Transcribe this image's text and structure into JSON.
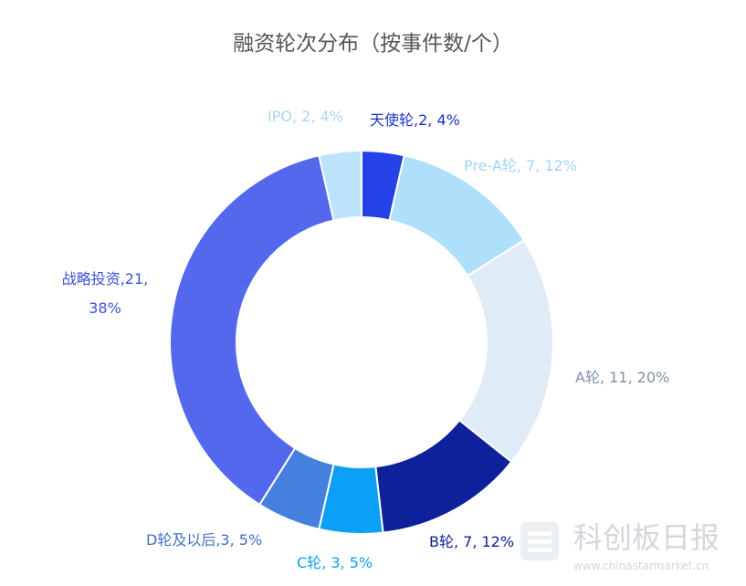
{
  "chart_data": {
    "type": "donut",
    "title": "融资轮次分布（按事件数/个）",
    "categories": [
      "天使轮",
      "Pre-A轮",
      "A轮",
      "B轮",
      "C轮",
      "D轮及以后",
      "战略投资",
      "IPO"
    ],
    "values": [
      2,
      7,
      11,
      7,
      3,
      3,
      21,
      2
    ],
    "value_labels": [
      "天使轮,2, 4%",
      "Pre-A轮, 7, 12%",
      "A轮, 11, 20%",
      "B轮, 7, 12%",
      "C轮, 3, 5%",
      "D轮及以后,3, 5%",
      "战略投资,21, 38%",
      "IPO, 2, 4%"
    ],
    "colors": [
      "#2541e8",
      "#aee0fc",
      "#e0ebf8",
      "#0e209a",
      "#0ba0f5",
      "#4580dc",
      "#5468ee",
      "#bde3fb"
    ],
    "label_colors": [
      "#1c34c8",
      "#9fd6f6",
      "#7f93ad",
      "#0e209a",
      "#0ba0f5",
      "#3f6fc8",
      "#3d52d6",
      "#a9d6f4"
    ]
  },
  "watermark": {
    "brand": "科创板日报",
    "url": "www.chinastarmarket.cn"
  }
}
